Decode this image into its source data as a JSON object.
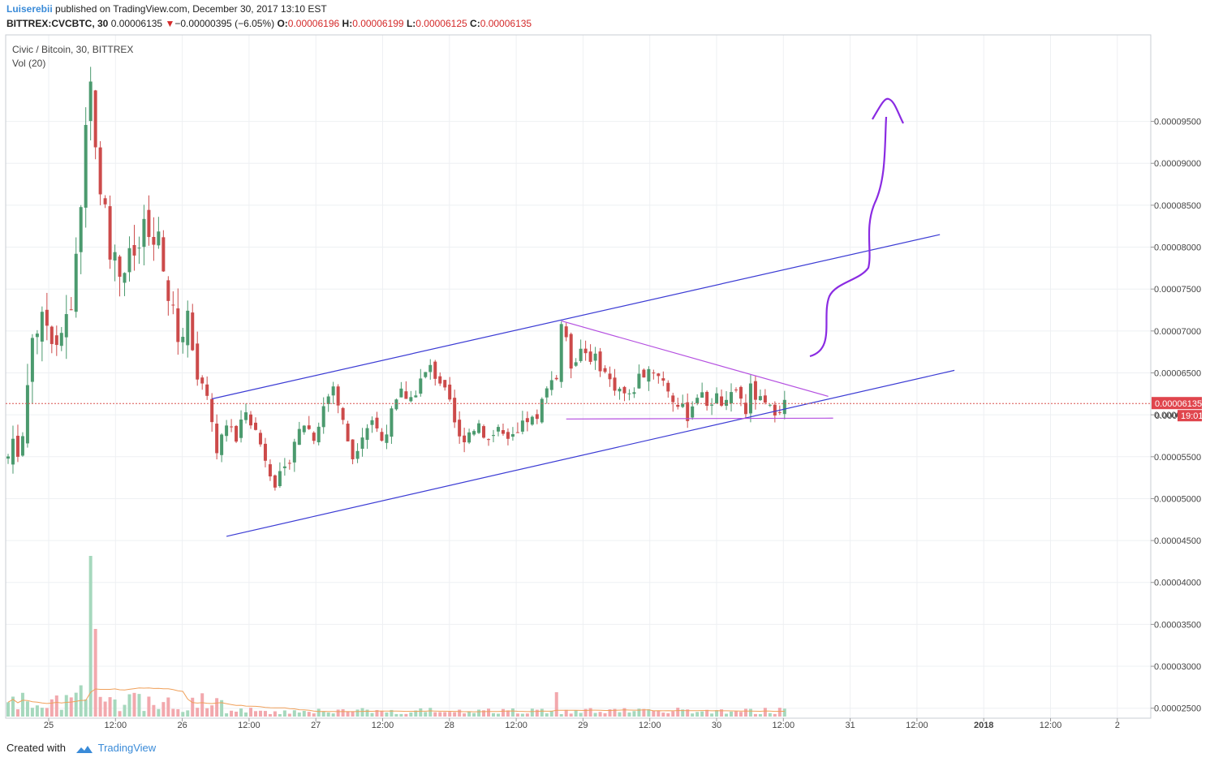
{
  "header": {
    "author": "Luiserebii",
    "published": "published on TradingView.com, December 30, 2017 13:10 EST",
    "symbol": "BITTREX:CVCBTC, 30",
    "last": "0.00006135",
    "change": "−0.00000395 (−6.05%)",
    "open_label": "O:",
    "open": "0.00006196",
    "high_label": "H:",
    "high": "0.00006199",
    "low_label": "L:",
    "low": "0.00006125",
    "close_label": "C:",
    "close": "0.00006135"
  },
  "legend": {
    "title": "Civic / Bitcoin, 30, BITTREX",
    "volume": "Vol (20)"
  },
  "footer": {
    "created_with": "Created with",
    "brand": "TradingView"
  },
  "colors": {
    "up": "#4b9a6e",
    "down": "#cc4a4a",
    "vol_up": "#a6d8bd",
    "vol_down": "#f2a8ad",
    "channel": "#3b3bd4",
    "wedge": "#b44fe0",
    "arrow": "#8a2be2",
    "last_price_bg": "#e0454d",
    "grid": "#eef0f3"
  },
  "chart_data": {
    "type": "candlestick",
    "title": "Civic / Bitcoin, 30, BITTREX",
    "interval": "30",
    "y_ticks": [
      "0.00009500",
      "0.00009000",
      "0.00008500",
      "0.00008000",
      "0.00007500",
      "0.00007000",
      "0.00006500",
      "0.00006000",
      "0.00005500",
      "0.00005000",
      "0.00004500",
      "0.00004000",
      "0.00003500",
      "0.00003000",
      "0.00002500"
    ],
    "ylim": [
      2.41e-05,
      9.98e-05
    ],
    "x_ticks": [
      "25",
      "12:00",
      "26",
      "12:00",
      "27",
      "12:00",
      "28",
      "12:00",
      "29",
      "12:00",
      "30",
      "12:00",
      "31",
      "12:00",
      "2018",
      "12:00",
      "2"
    ],
    "last_price": "0.00006135",
    "last_price_alt": "0.000",
    "countdown": "19:01",
    "grid": true,
    "price_points": [
      [
        0,
        5.48e-05
      ],
      [
        3,
        5.75e-05
      ],
      [
        5,
        7e-05
      ],
      [
        8,
        7.1e-05
      ],
      [
        10,
        6.9e-05
      ],
      [
        13,
        7.2e-05
      ],
      [
        15,
        8.5e-05
      ],
      [
        16,
        9.6e-05
      ],
      [
        17,
        9.9e-05
      ],
      [
        19,
        8.8e-05
      ],
      [
        21,
        8e-05
      ],
      [
        23,
        7.7e-05
      ],
      [
        26,
        7.9e-05
      ],
      [
        28,
        8.15e-05
      ],
      [
        31,
        8e-05
      ],
      [
        33,
        7.4e-05
      ],
      [
        35,
        6.9e-05
      ],
      [
        37,
        7.15e-05
      ],
      [
        39,
        6.6e-05
      ],
      [
        41,
        6.15e-05
      ],
      [
        43,
        5.6e-05
      ],
      [
        45,
        5.9e-05
      ],
      [
        47,
        5.7e-05
      ],
      [
        49,
        6.1e-05
      ],
      [
        51,
        5.8e-05
      ],
      [
        53,
        5.5e-05
      ],
      [
        55,
        5.2e-05
      ],
      [
        57,
        5.3e-05
      ],
      [
        59,
        5.7e-05
      ],
      [
        61,
        5.9e-05
      ],
      [
        63,
        5.75e-05
      ],
      [
        65,
        6.1e-05
      ],
      [
        67,
        6.35e-05
      ],
      [
        69,
        5.9e-05
      ],
      [
        71,
        5.5e-05
      ],
      [
        73,
        5.8e-05
      ],
      [
        75,
        5.95e-05
      ],
      [
        77,
        5.7e-05
      ],
      [
        79,
        6e-05
      ],
      [
        81,
        6.25e-05
      ],
      [
        83,
        6.2e-05
      ],
      [
        85,
        6.4e-05
      ],
      [
        87,
        6.55e-05
      ],
      [
        89,
        6.4e-05
      ],
      [
        91,
        6.1e-05
      ],
      [
        93,
        5.7e-05
      ],
      [
        95,
        5.8e-05
      ],
      [
        97,
        5.9e-05
      ],
      [
        99,
        5.7e-05
      ],
      [
        101,
        5.85e-05
      ],
      [
        103,
        5.65e-05
      ],
      [
        105,
        5.75e-05
      ],
      [
        107,
        5.95e-05
      ],
      [
        109,
        5.9e-05
      ],
      [
        111,
        6.4e-05
      ],
      [
        113,
        6.45e-05
      ],
      [
        114,
        7.1e-05
      ],
      [
        116,
        6.6e-05
      ],
      [
        118,
        6.8e-05
      ],
      [
        120,
        6.7e-05
      ],
      [
        122,
        6.6e-05
      ],
      [
        124,
        6.4e-05
      ],
      [
        126,
        6.3e-05
      ],
      [
        128,
        6.2e-05
      ],
      [
        130,
        6.45e-05
      ],
      [
        132,
        6.55e-05
      ],
      [
        134,
        6.5e-05
      ],
      [
        136,
        6.3e-05
      ],
      [
        138,
        6.1e-05
      ],
      [
        140,
        6e-05
      ],
      [
        142,
        6.25e-05
      ],
      [
        144,
        6.15e-05
      ],
      [
        146,
        6.2e-05
      ],
      [
        148,
        6.1e-05
      ],
      [
        150,
        6.3e-05
      ],
      [
        152,
        6.05e-05
      ],
      [
        153,
        6.3e-05
      ],
      [
        155,
        6.15e-05
      ],
      [
        157,
        6.05e-05
      ],
      [
        159,
        6.1e-05
      ],
      [
        160,
        6.14e-05
      ]
    ],
    "volume_spike_index": 17,
    "annotations": [
      {
        "type": "trendline",
        "name": "channel upper",
        "color": "channel",
        "from": [
          42,
          6.19e-05
        ],
        "to": [
          192,
          8.15e-05
        ]
      },
      {
        "type": "trendline",
        "name": "channel lower",
        "color": "channel",
        "from": [
          45,
          4.55e-05
        ],
        "to": [
          195,
          6.53e-05
        ]
      },
      {
        "type": "trendline",
        "name": "wedge top",
        "color": "wedge",
        "from": [
          114,
          7.12e-05
        ],
        "to": [
          169,
          6.22e-05
        ]
      },
      {
        "type": "trendline",
        "name": "wedge bottom",
        "color": "wedge",
        "from": [
          115,
          5.95e-05
        ],
        "to": [
          170,
          5.96e-05
        ]
      }
    ]
  }
}
